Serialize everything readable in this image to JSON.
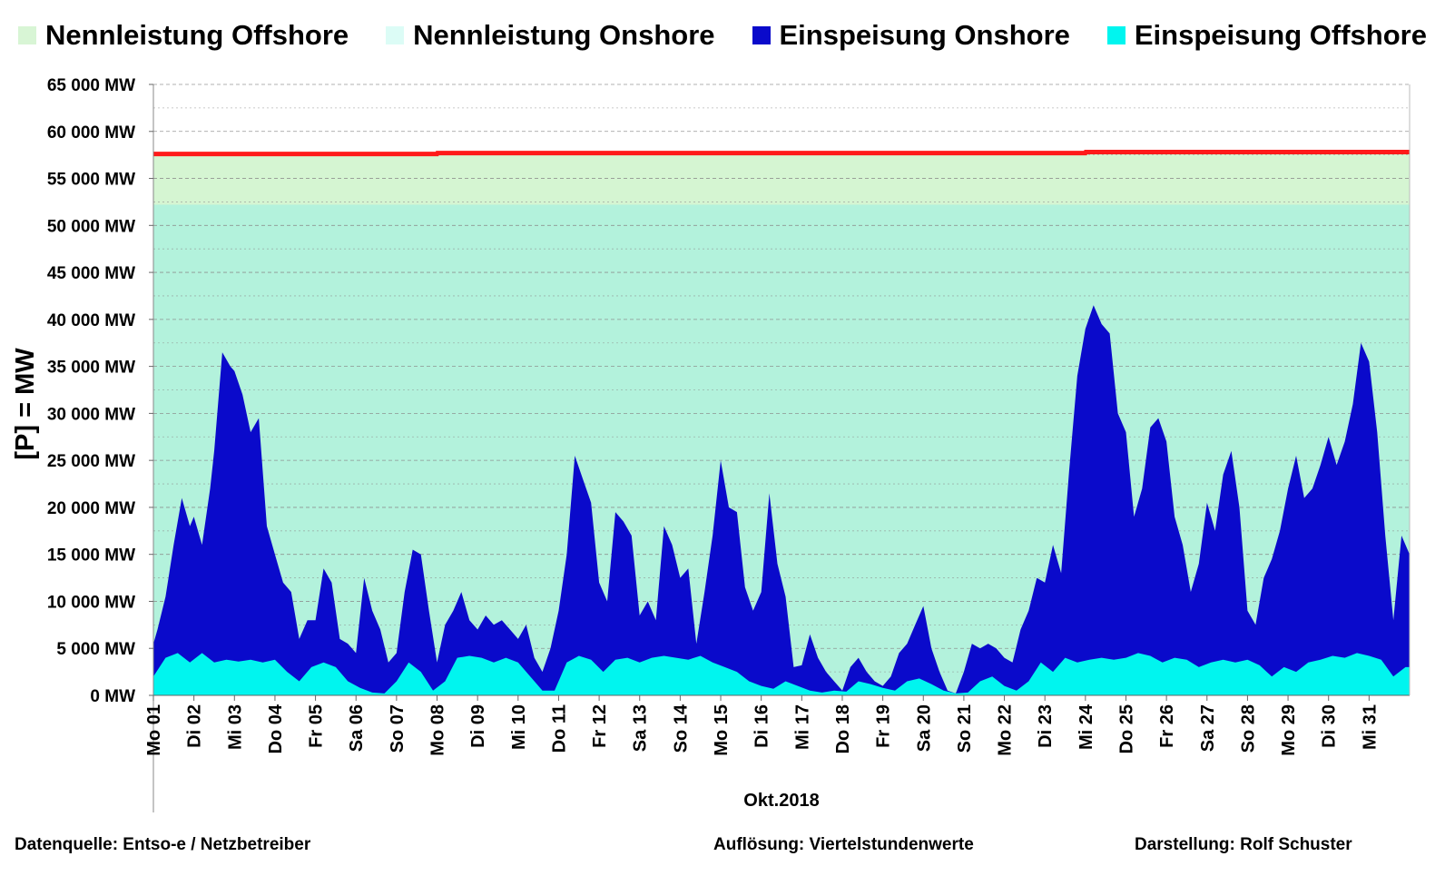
{
  "colors": {
    "nenn_offshore": "#d5f5d2",
    "nenn_onshore": "#b3f2dc",
    "onshore": "#0a0acb",
    "offshore": "#00f5ef",
    "capacity_line": "#ff1a1a",
    "grid": "#8a8a8a"
  },
  "legend": [
    {
      "label": "Nennleistung Offshore",
      "color": "#d8f5d5"
    },
    {
      "label": "Nennleistung Onshore",
      "color": "#dcfcf6"
    },
    {
      "label": "Einspeisung Onshore",
      "color": "#0a0acb"
    },
    {
      "label": "Einspeisung Offshore",
      "color": "#00f5ef"
    }
  ],
  "footer": {
    "source": "Datenquelle:  Entso-e  / Netzbetreiber",
    "resolution": "Auflösung: Viertelstundenwerte",
    "author": "Darstellung: Rolf Schuster"
  },
  "chart_data": {
    "type": "area",
    "title": "",
    "xlabel": "Okt.2018",
    "ylabel": "[P] = MW",
    "ylim": [
      0,
      65000
    ],
    "xlim": [
      0,
      31
    ],
    "yticks": [
      0,
      5000,
      10000,
      15000,
      20000,
      25000,
      30000,
      35000,
      40000,
      45000,
      50000,
      55000,
      60000,
      65000
    ],
    "ytick_labels": [
      "0 MW",
      "5 000 MW",
      "10 000 MW",
      "15 000 MW",
      "20 000 MW",
      "25 000 MW",
      "30 000 MW",
      "35 000 MW",
      "40 000 MW",
      "45 000 MW",
      "50 000 MW",
      "55 000 MW",
      "60 000 MW",
      "65 000 MW"
    ],
    "xtick_labels": [
      "Mo 01",
      "Di 02",
      "Mi 03",
      "Do 04",
      "Fr 05",
      "Sa 06",
      "So 07",
      "Mo 08",
      "Di 09",
      "Mi 10",
      "Do 11",
      "Fr 12",
      "Sa 13",
      "So 14",
      "Mo 15",
      "Di 16",
      "Mi 17",
      "Do 18",
      "Fr 19",
      "Sa 20",
      "So 21",
      "Mo 22",
      "Di 23",
      "Mi 24",
      "Do 25",
      "Fr 26",
      "Sa 27",
      "So 28",
      "Mo 29",
      "Di 30",
      "Mi 31"
    ],
    "grid": true,
    "legend_position": "top",
    "series": [
      {
        "name": "Nennleistung Offshore",
        "note": "stacked capacity band up to total capacity line",
        "x": [
          0,
          7,
          7.01,
          23,
          23.01,
          31
        ],
        "values": [
          57600,
          57600,
          57700,
          57700,
          57800,
          57800
        ]
      },
      {
        "name": "Nennleistung Onshore",
        "x": [
          0,
          31
        ],
        "values": [
          52200,
          52200
        ]
      },
      {
        "name": "Einspeisung Onshore",
        "note": "total feed-in (onshore stacked on offshore), approximate",
        "x": [
          0,
          0.1,
          0.3,
          0.5,
          0.7,
          0.9,
          1.0,
          1.2,
          1.4,
          1.5,
          1.7,
          1.9,
          2.0,
          2.2,
          2.4,
          2.6,
          2.8,
          3.0,
          3.2,
          3.4,
          3.6,
          3.8,
          4.0,
          4.2,
          4.4,
          4.6,
          4.8,
          5.0,
          5.2,
          5.4,
          5.6,
          5.8,
          6.0,
          6.2,
          6.4,
          6.6,
          6.8,
          7.0,
          7.2,
          7.4,
          7.6,
          7.8,
          8.0,
          8.2,
          8.4,
          8.6,
          8.8,
          9.0,
          9.2,
          9.4,
          9.6,
          9.8,
          10.0,
          10.2,
          10.4,
          10.6,
          10.8,
          11.0,
          11.2,
          11.4,
          11.6,
          11.8,
          12.0,
          12.2,
          12.4,
          12.6,
          12.8,
          13.0,
          13.2,
          13.4,
          13.6,
          13.8,
          14.0,
          14.2,
          14.4,
          14.6,
          14.8,
          15.0,
          15.2,
          15.4,
          15.6,
          15.8,
          16.0,
          16.2,
          16.4,
          16.6,
          16.8,
          17.0,
          17.2,
          17.4,
          17.6,
          17.8,
          18.0,
          18.2,
          18.4,
          18.6,
          18.8,
          19.0,
          19.2,
          19.4,
          19.6,
          19.8,
          20.0,
          20.2,
          20.4,
          20.6,
          20.8,
          21.0,
          21.2,
          21.4,
          21.6,
          21.8,
          22.0,
          22.2,
          22.4,
          22.6,
          22.8,
          23.0,
          23.2,
          23.4,
          23.6,
          23.8,
          24.0,
          24.2,
          24.4,
          24.6,
          24.8,
          25.0,
          25.2,
          25.4,
          25.6,
          25.8,
          26.0,
          26.2,
          26.4,
          26.6,
          26.8,
          27.0,
          27.2,
          27.4,
          27.6,
          27.8,
          28.0,
          28.2,
          28.4,
          28.6,
          28.8,
          29.0,
          29.2,
          29.4,
          29.6,
          29.8,
          30.0,
          30.2,
          30.4,
          30.6,
          30.8,
          31.0
        ],
        "values": [
          5500,
          7000,
          10500,
          16000,
          21000,
          18000,
          19000,
          16000,
          22000,
          26000,
          36500,
          35000,
          34500,
          32000,
          28000,
          29500,
          18000,
          15000,
          12000,
          11000,
          6000,
          8000,
          8000,
          13500,
          12000,
          6000,
          5500,
          4500,
          12500,
          9000,
          7000,
          3500,
          4500,
          11000,
          15500,
          15000,
          9000,
          3500,
          7500,
          9000,
          11000,
          8000,
          7000,
          8500,
          7500,
          8000,
          7000,
          6000,
          7500,
          4000,
          2500,
          5000,
          9000,
          15000,
          25500,
          23000,
          20500,
          12000,
          10000,
          19500,
          18500,
          17000,
          8500,
          10000,
          8000,
          18000,
          16000,
          12500,
          13500,
          5500,
          11000,
          17000,
          25000,
          20000,
          19500,
          11500,
          9000,
          11000,
          21500,
          14000,
          10500,
          3000,
          3200,
          6500,
          4000,
          2500,
          1500,
          500,
          3000,
          4000,
          2500,
          1500,
          1000,
          2000,
          4500,
          5500,
          7500,
          9500,
          5000,
          2500,
          500,
          200,
          2500,
          5500,
          5000,
          5500,
          5000,
          4000,
          3500,
          7000,
          9000,
          12500,
          12000,
          16000,
          13000,
          24000,
          34000,
          39000,
          41500,
          39500,
          38500,
          30000,
          28000,
          19000,
          22000,
          28500,
          29500,
          27000,
          19000,
          16000,
          11000,
          14000,
          20500,
          17500,
          23500,
          26000,
          20000,
          9000,
          7500,
          12500,
          14500,
          17500,
          22000,
          25500,
          21000,
          22000,
          24500,
          27500,
          24500,
          27000,
          31000,
          37500,
          35500,
          28000,
          17000,
          8000,
          17000,
          15000
        ]
      },
      {
        "name": "Einspeisung Offshore",
        "x": [
          0,
          0.3,
          0.6,
          0.9,
          1.2,
          1.5,
          1.8,
          2.1,
          2.4,
          2.7,
          3.0,
          3.3,
          3.6,
          3.9,
          4.2,
          4.5,
          4.8,
          5.1,
          5.4,
          5.7,
          6.0,
          6.3,
          6.6,
          6.9,
          7.2,
          7.5,
          7.8,
          8.1,
          8.4,
          8.7,
          9.0,
          9.3,
          9.6,
          9.9,
          10.2,
          10.5,
          10.8,
          11.1,
          11.4,
          11.7,
          12.0,
          12.3,
          12.6,
          12.9,
          13.2,
          13.5,
          13.8,
          14.1,
          14.4,
          14.7,
          15.0,
          15.3,
          15.6,
          15.9,
          16.2,
          16.5,
          16.8,
          17.1,
          17.4,
          17.7,
          18.0,
          18.3,
          18.6,
          18.9,
          19.2,
          19.5,
          19.8,
          20.1,
          20.4,
          20.7,
          21.0,
          21.3,
          21.6,
          21.9,
          22.2,
          22.5,
          22.8,
          23.1,
          23.4,
          23.7,
          24.0,
          24.3,
          24.6,
          24.9,
          25.2,
          25.5,
          25.8,
          26.1,
          26.4,
          26.7,
          27.0,
          27.3,
          27.6,
          27.9,
          28.2,
          28.5,
          28.8,
          29.1,
          29.4,
          29.7,
          30.0,
          30.3,
          30.6,
          30.9,
          31.0
        ],
        "values": [
          2000,
          4000,
          4500,
          3500,
          4500,
          3500,
          3800,
          3600,
          3800,
          3500,
          3800,
          2500,
          1500,
          3000,
          3500,
          3000,
          1500,
          800,
          300,
          200,
          1500,
          3500,
          2500,
          500,
          1500,
          4000,
          4200,
          4000,
          3500,
          4000,
          3500,
          2000,
          500,
          500,
          3500,
          4200,
          3800,
          2500,
          3800,
          4000,
          3500,
          4000,
          4200,
          4000,
          3800,
          4200,
          3500,
          3000,
          2500,
          1500,
          1000,
          700,
          1500,
          1000,
          500,
          300,
          500,
          400,
          1500,
          1200,
          800,
          500,
          1500,
          1800,
          1200,
          500,
          200,
          300,
          1500,
          2000,
          1000,
          500,
          1500,
          3500,
          2500,
          4000,
          3500,
          3800,
          4000,
          3800,
          4000,
          4500,
          4200,
          3500,
          4000,
          3800,
          3000,
          3500,
          3800,
          3500,
          3800,
          3200,
          2000,
          3000,
          2500,
          3500,
          3800,
          4200,
          4000,
          4500,
          4200,
          3800,
          2000,
          3000,
          3000
        ]
      }
    ]
  }
}
